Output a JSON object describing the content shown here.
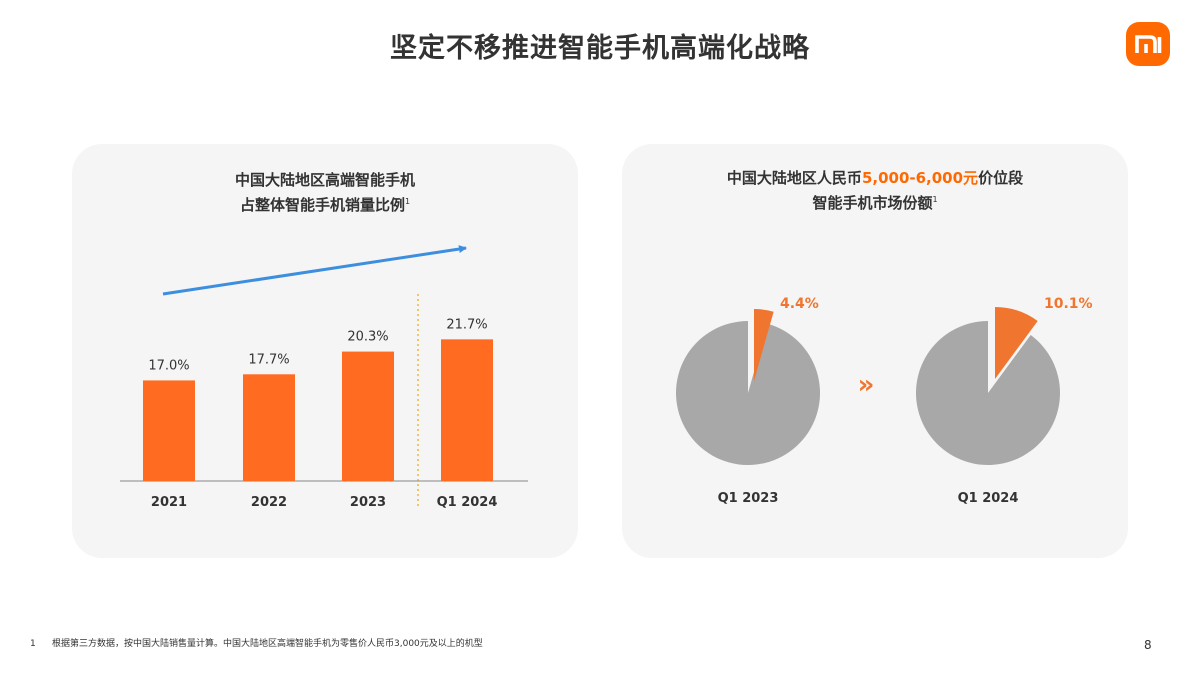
{
  "header": {
    "title": "坚定不移推进智能手机高端化战略"
  },
  "left_panel": {
    "title_line1": "中国大陆地区高端智能手机",
    "title_line2": "占整体智能手机销量比例",
    "title_footnote_mark": "1"
  },
  "right_panel": {
    "title_line1_prefix": "中国大陆地区人民币",
    "title_line1_highlight": "5,000-6,000元",
    "title_line1_suffix": "价位段",
    "title_line2": "智能手机市场份额",
    "title_footnote_mark": "1",
    "transition_glyph": "»"
  },
  "chart_data": [
    {
      "type": "bar",
      "categories": [
        "2021",
        "2022",
        "2023",
        "Q1 2024"
      ],
      "values": [
        17.0,
        17.7,
        20.3,
        21.7
      ],
      "value_labels": [
        "17.0%",
        "17.7%",
        "20.3%",
        "21.7%"
      ],
      "title": "中国大陆地区高端智能手机占整体智能手机销量比例",
      "unit": "%",
      "ylim": [
        0,
        25
      ],
      "grid": false,
      "legend": "none",
      "annotations": [
        "upward trend arrow",
        "dotted divider before Q1 2024"
      ],
      "colors": {
        "bar": "#ff6b21",
        "arrow": "#3d8ede",
        "divider": "#f2b53a"
      }
    },
    {
      "type": "pie",
      "title": "中国大陆地区人民币5,000-6,000元价位段智能手机市场份额",
      "charts": [
        {
          "label": "Q1 2023",
          "highlight_value": 4.4,
          "highlight_label": "4.4%"
        },
        {
          "label": "Q1 2024",
          "highlight_value": 10.1,
          "highlight_label": "10.1%"
        }
      ],
      "unit": "%",
      "legend": "none",
      "colors": {
        "highlight": "#f07630",
        "rest": "#a8a8a8",
        "transition": "#f07630"
      }
    }
  ],
  "footer": {
    "footnote_number": "1",
    "footnote_text": "根据第三方数据，按中国大陆销售量计算。中国大陆地区高端智能手机为零售价人民币3,000元及以上的机型",
    "page_number": "8"
  },
  "brand": {
    "logo_icon": "xiaomi-mi-logo",
    "color": "#ff6900"
  }
}
